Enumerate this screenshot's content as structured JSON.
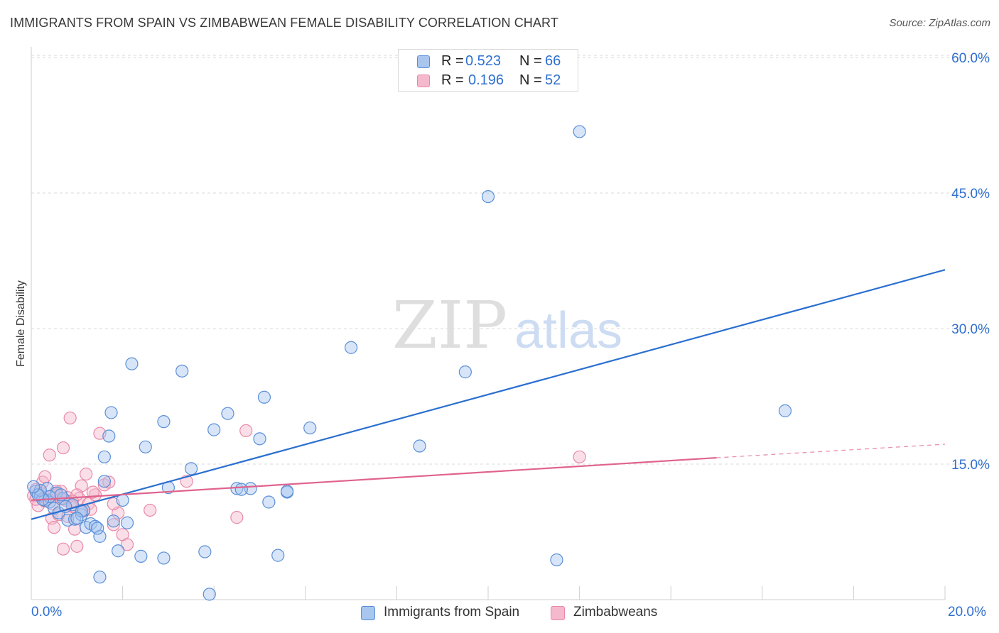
{
  "title": "IMMIGRANTS FROM SPAIN VS ZIMBABWEAN FEMALE DISABILITY CORRELATION CHART",
  "source": "Source: ZipAtlas.com",
  "watermark": {
    "zip": "ZIP",
    "atlas": "atlas"
  },
  "colors": {
    "blue_fill": "#a9c6ef",
    "blue_stroke": "#5a8fd8",
    "blue_line": "#2a6fcf",
    "pink_fill": "#f5b8cc",
    "pink_stroke": "#e889a8",
    "pink_line": "#e0638e",
    "axis_text": "#2f6fd0",
    "grid": "#d9d9d9"
  },
  "legend_top": [
    {
      "r_label": "R =",
      "r_value": "0.523",
      "n_label": "N =",
      "n_value": "66"
    },
    {
      "r_label": "R =",
      "r_value": "0.196",
      "n_label": "N =",
      "n_value": "52"
    }
  ],
  "chart_data": {
    "type": "scatter",
    "title": "IMMIGRANTS FROM SPAIN VS ZIMBABWEAN FEMALE DISABILITY CORRELATION CHART",
    "xlabel": "",
    "ylabel": "Female Disability",
    "xlim": [
      0,
      20
    ],
    "ylim": [
      0,
      60
    ],
    "x_tick_labels": [
      "0.0%",
      "20.0%"
    ],
    "y_ticks": [
      15,
      30,
      45,
      60
    ],
    "y_tick_labels": [
      "15.0%",
      "30.0%",
      "45.0%",
      "60.0%"
    ],
    "grid": true,
    "legend_placement": "bottom",
    "series": [
      {
        "name": "Immigrants from Spain",
        "color": "#a9c6ef",
        "regression": {
          "x": [
            0,
            20
          ],
          "y": [
            8.9,
            36.5
          ]
        },
        "points": [
          [
            0.1,
            12.0
          ],
          [
            0.2,
            11.5
          ],
          [
            0.3,
            11.0
          ],
          [
            0.35,
            12.3
          ],
          [
            0.4,
            10.8
          ],
          [
            0.5,
            10.1
          ],
          [
            0.55,
            11.8
          ],
          [
            0.6,
            9.6
          ],
          [
            0.7,
            11.2
          ],
          [
            0.8,
            8.8
          ],
          [
            0.9,
            10.5
          ],
          [
            0.95,
            8.9
          ],
          [
            1.1,
            9.4
          ],
          [
            1.2,
            8.0
          ],
          [
            1.15,
            9.9
          ],
          [
            1.3,
            8.4
          ],
          [
            1.4,
            8.1
          ],
          [
            1.5,
            7.0
          ],
          [
            1.6,
            13.1
          ],
          [
            1.7,
            18.1
          ],
          [
            1.75,
            20.7
          ],
          [
            1.8,
            8.7
          ],
          [
            1.9,
            5.4
          ],
          [
            2.0,
            11.0
          ],
          [
            2.2,
            26.1
          ],
          [
            2.5,
            16.9
          ],
          [
            2.9,
            19.7
          ],
          [
            3.3,
            25.3
          ],
          [
            3.5,
            14.5
          ],
          [
            4.0,
            18.8
          ],
          [
            4.3,
            20.6
          ],
          [
            4.5,
            12.3
          ],
          [
            4.8,
            12.3
          ],
          [
            5.0,
            17.8
          ],
          [
            5.1,
            22.4
          ],
          [
            5.2,
            10.8
          ],
          [
            5.6,
            11.9
          ],
          [
            6.1,
            19.0
          ],
          [
            7.0,
            27.9
          ],
          [
            8.5,
            17.0
          ],
          [
            9.5,
            25.2
          ],
          [
            10.0,
            44.6
          ],
          [
            11.5,
            4.4
          ],
          [
            12.0,
            51.8
          ],
          [
            16.5,
            20.9
          ],
          [
            2.4,
            4.8
          ],
          [
            2.9,
            4.6
          ],
          [
            3.8,
            5.3
          ],
          [
            5.4,
            4.9
          ],
          [
            1.1,
            9.8
          ],
          [
            1.6,
            15.8
          ],
          [
            2.1,
            8.5
          ],
          [
            0.4,
            11.4
          ],
          [
            0.75,
            10.3
          ],
          [
            1.0,
            9.0
          ],
          [
            0.65,
            11.6
          ],
          [
            3.0,
            12.4
          ],
          [
            4.6,
            12.2
          ],
          [
            5.6,
            12.0
          ],
          [
            3.9,
            0.6
          ],
          [
            1.45,
            7.9
          ],
          [
            0.25,
            11.1
          ],
          [
            0.2,
            12.1
          ],
          [
            1.5,
            2.5
          ],
          [
            0.15,
            11.6
          ],
          [
            0.05,
            12.5
          ]
        ]
      },
      {
        "name": "Zimbabweans",
        "color": "#f5b8cc",
        "regression": {
          "x": [
            0,
            15
          ],
          "y": [
            11.0,
            15.7
          ]
        },
        "regression_dashed": {
          "x": [
            15,
            20
          ],
          "y": [
            15.7,
            17.2
          ]
        },
        "points": [
          [
            0.05,
            11.5
          ],
          [
            0.1,
            12.2
          ],
          [
            0.15,
            10.4
          ],
          [
            0.2,
            11.8
          ],
          [
            0.25,
            13.0
          ],
          [
            0.3,
            13.6
          ],
          [
            0.35,
            11.1
          ],
          [
            0.4,
            16.0
          ],
          [
            0.45,
            9.0
          ],
          [
            0.5,
            8.0
          ],
          [
            0.55,
            11.6
          ],
          [
            0.6,
            9.4
          ],
          [
            0.65,
            12.0
          ],
          [
            0.7,
            16.8
          ],
          [
            0.7,
            5.6
          ],
          [
            0.75,
            11.0
          ],
          [
            0.8,
            9.2
          ],
          [
            0.85,
            20.1
          ],
          [
            0.9,
            10.3
          ],
          [
            0.95,
            7.8
          ],
          [
            1.0,
            5.9
          ],
          [
            1.05,
            11.2
          ],
          [
            1.1,
            12.6
          ],
          [
            1.15,
            9.8
          ],
          [
            1.2,
            13.9
          ],
          [
            1.25,
            10.6
          ],
          [
            1.3,
            10.0
          ],
          [
            1.4,
            11.6
          ],
          [
            1.5,
            18.4
          ],
          [
            1.6,
            12.7
          ],
          [
            1.7,
            13.0
          ],
          [
            1.8,
            8.3
          ],
          [
            1.9,
            9.6
          ],
          [
            2.0,
            7.2
          ],
          [
            2.1,
            6.1
          ],
          [
            2.6,
            9.9
          ],
          [
            3.4,
            13.1
          ],
          [
            4.5,
            9.1
          ],
          [
            4.7,
            18.7
          ],
          [
            12.0,
            15.8
          ],
          [
            0.2,
            11.4
          ],
          [
            0.3,
            10.9
          ],
          [
            0.5,
            11.7
          ],
          [
            0.55,
            12.0
          ],
          [
            0.8,
            11.3
          ],
          [
            1.0,
            11.6
          ],
          [
            1.35,
            11.9
          ],
          [
            1.8,
            10.6
          ],
          [
            0.1,
            11.1
          ],
          [
            0.45,
            10.6
          ],
          [
            0.65,
            11.2
          ],
          [
            0.9,
            10.9
          ]
        ]
      }
    ]
  }
}
